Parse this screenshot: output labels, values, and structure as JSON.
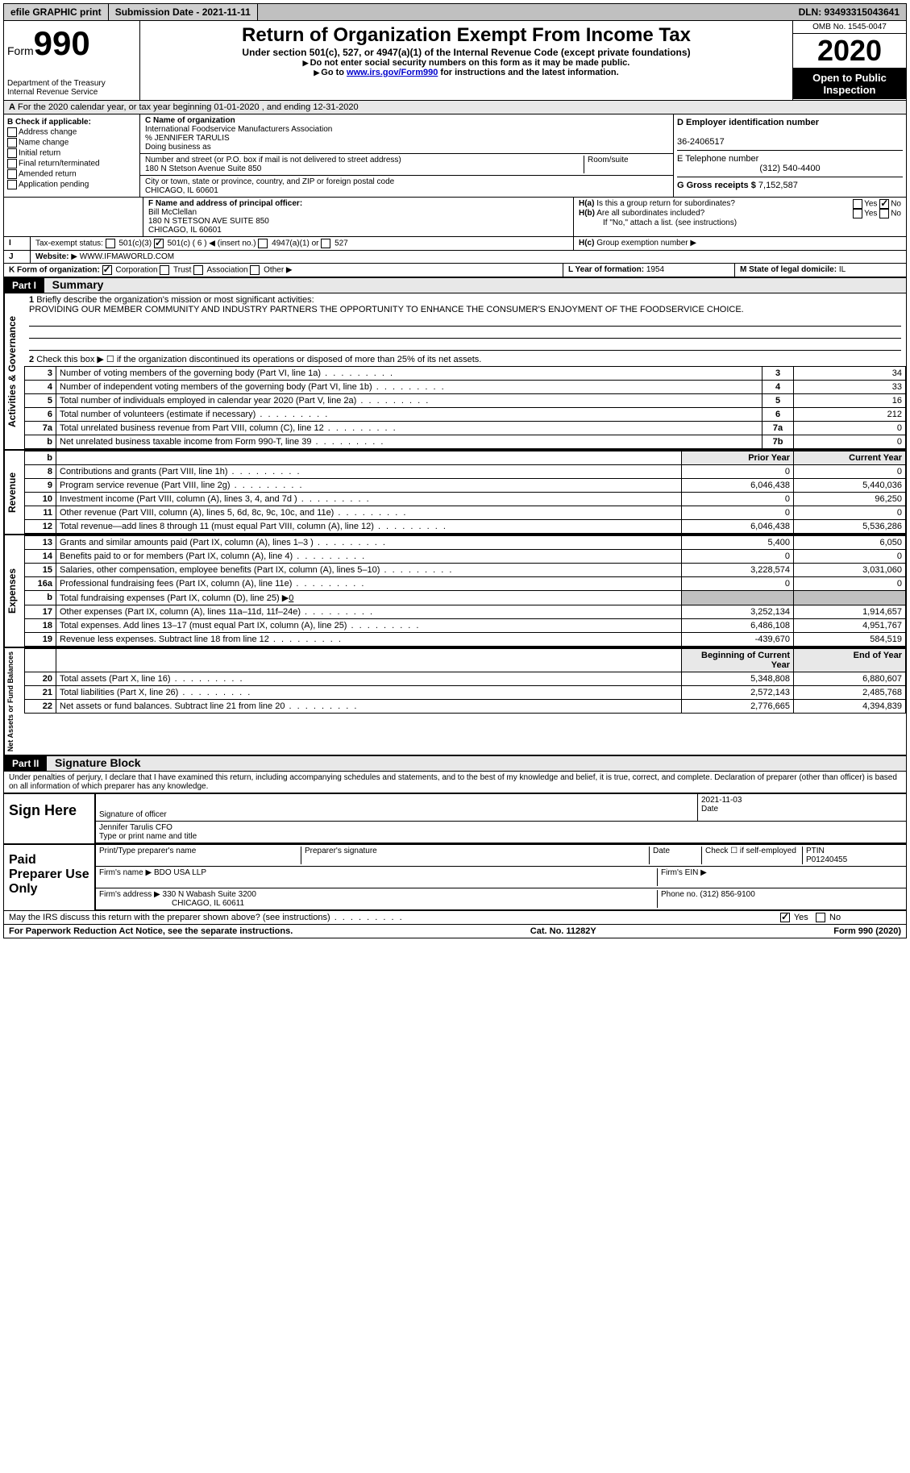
{
  "topbar": {
    "efile": "efile GRAPHIC print",
    "submission": "Submission Date - 2021-11-11",
    "dln": "DLN: 93493315043641"
  },
  "header": {
    "form_word": "Form",
    "form_num": "990",
    "dept": "Department of the Treasury",
    "irs": "Internal Revenue Service",
    "title": "Return of Organization Exempt From Income Tax",
    "subtitle": "Under section 501(c), 527, or 4947(a)(1) of the Internal Revenue Code (except private foundations)",
    "inst1": "Do not enter social security numbers on this form as it may be made public.",
    "inst2_pre": "Go to ",
    "inst2_link": "www.irs.gov/Form990",
    "inst2_post": " for instructions and the latest information.",
    "omb": "OMB No. 1545-0047",
    "year": "2020",
    "open": "Open to Public Inspection"
  },
  "section_a": "For the 2020 calendar year, or tax year beginning 01-01-2020   , and ending 12-31-2020",
  "box_b": {
    "label": "B Check if applicable:",
    "items": [
      "Address change",
      "Name change",
      "Initial return",
      "Final return/terminated",
      "Amended return",
      "Application pending"
    ]
  },
  "box_c": {
    "label_name": "C Name of organization",
    "org_name": "International Foodservice Manufacturers Association",
    "care_of": "% JENNIFER TARULIS",
    "dba_label": "Doing business as",
    "addr_label": "Number and street (or P.O. box if mail is not delivered to street address)",
    "room_label": "Room/suite",
    "addr": "180 N Stetson Avenue Suite 850",
    "city_label": "City or town, state or province, country, and ZIP or foreign postal code",
    "city": "CHICAGO, IL  60601"
  },
  "box_d": {
    "label": "D Employer identification number",
    "ein": "36-2406517"
  },
  "box_e": {
    "label": "E Telephone number",
    "phone": "(312) 540-4400"
  },
  "box_g": {
    "label": "G Gross receipts $",
    "amount": "7,152,587"
  },
  "box_f": {
    "label": "F Name and address of principal officer:",
    "name": "Bill McClellan",
    "addr1": "180 N STETSON AVE SUITE 850",
    "addr2": "CHICAGO, IL  60601"
  },
  "box_h": {
    "a_label": "Is this a group return for subordinates?",
    "b_label": "Are all subordinates included?",
    "b_note": "If \"No,\" attach a list. (see instructions)",
    "c_label": "Group exemption number",
    "yes": "Yes",
    "no": "No"
  },
  "box_i": {
    "label": "Tax-exempt status:",
    "opt1": "501(c)(3)",
    "opt2": "501(c) ( 6 )",
    "opt2_note": "(insert no.)",
    "opt3": "4947(a)(1) or",
    "opt4": "527"
  },
  "box_j": {
    "label": "Website:",
    "value": "WWW.IFMAWORLD.COM"
  },
  "box_k": {
    "label": "K Form of organization:",
    "opt1": "Corporation",
    "opt2": "Trust",
    "opt3": "Association",
    "opt4": "Other"
  },
  "box_l": {
    "label": "L Year of formation:",
    "value": "1954"
  },
  "box_m": {
    "label": "M State of legal domicile:",
    "value": "IL"
  },
  "part1": {
    "label": "Part I",
    "title": "Summary",
    "q1": "Briefly describe the organization's mission or most significant activities:",
    "mission": "PROVIDING OUR MEMBER COMMUNITY AND INDUSTRY PARTNERS THE OPPORTUNITY TO ENHANCE THE CONSUMER'S ENJOYMENT OF THE FOODSERVICE CHOICE.",
    "q2": "Check this box ▶ ☐  if the organization discontinued its operations or disposed of more than 25% of its net assets."
  },
  "gov_section_label": "Activities & Governance",
  "rev_section_label": "Revenue",
  "exp_section_label": "Expenses",
  "net_section_label": "Net Assets or Fund Balances",
  "lines": {
    "l3": {
      "n": "3",
      "t": "Number of voting members of the governing body (Part VI, line 1a)",
      "box": "3",
      "v": "34"
    },
    "l4": {
      "n": "4",
      "t": "Number of independent voting members of the governing body (Part VI, line 1b)",
      "box": "4",
      "v": "33"
    },
    "l5": {
      "n": "5",
      "t": "Total number of individuals employed in calendar year 2020 (Part V, line 2a)",
      "box": "5",
      "v": "16"
    },
    "l6": {
      "n": "6",
      "t": "Total number of volunteers (estimate if necessary)",
      "box": "6",
      "v": "212"
    },
    "l7a": {
      "n": "7a",
      "t": "Total unrelated business revenue from Part VIII, column (C), line 12",
      "box": "7a",
      "v": "0"
    },
    "l7b": {
      "n": "b",
      "t": "Net unrelated business taxable income from Form 990-T, line 39",
      "box": "7b",
      "v": "0"
    }
  },
  "col_prior": "Prior Year",
  "col_current": "Current Year",
  "rev_lines": [
    {
      "n": "8",
      "t": "Contributions and grants (Part VIII, line 1h)",
      "p": "0",
      "c": "0"
    },
    {
      "n": "9",
      "t": "Program service revenue (Part VIII, line 2g)",
      "p": "6,046,438",
      "c": "5,440,036"
    },
    {
      "n": "10",
      "t": "Investment income (Part VIII, column (A), lines 3, 4, and 7d )",
      "p": "0",
      "c": "96,250"
    },
    {
      "n": "11",
      "t": "Other revenue (Part VIII, column (A), lines 5, 6d, 8c, 9c, 10c, and 11e)",
      "p": "0",
      "c": "0"
    },
    {
      "n": "12",
      "t": "Total revenue—add lines 8 through 11 (must equal Part VIII, column (A), line 12)",
      "p": "6,046,438",
      "c": "5,536,286"
    }
  ],
  "exp_lines": [
    {
      "n": "13",
      "t": "Grants and similar amounts paid (Part IX, column (A), lines 1–3 )",
      "p": "5,400",
      "c": "6,050"
    },
    {
      "n": "14",
      "t": "Benefits paid to or for members (Part IX, column (A), line 4)",
      "p": "0",
      "c": "0"
    },
    {
      "n": "15",
      "t": "Salaries, other compensation, employee benefits (Part IX, column (A), lines 5–10)",
      "p": "3,228,574",
      "c": "3,031,060"
    },
    {
      "n": "16a",
      "t": "Professional fundraising fees (Part IX, column (A), line 11e)",
      "p": "0",
      "c": "0"
    }
  ],
  "line16b": {
    "n": "b",
    "t": "Total fundraising expenses (Part IX, column (D), line 25) ▶",
    "v": "0"
  },
  "exp_lines2": [
    {
      "n": "17",
      "t": "Other expenses (Part IX, column (A), lines 11a–11d, 11f–24e)",
      "p": "3,252,134",
      "c": "1,914,657"
    },
    {
      "n": "18",
      "t": "Total expenses. Add lines 13–17 (must equal Part IX, column (A), line 25)",
      "p": "6,486,108",
      "c": "4,951,767"
    },
    {
      "n": "19",
      "t": "Revenue less expenses. Subtract line 18 from line 12",
      "p": "-439,670",
      "c": "584,519"
    }
  ],
  "col_begin": "Beginning of Current Year",
  "col_end": "End of Year",
  "net_lines": [
    {
      "n": "20",
      "t": "Total assets (Part X, line 16)",
      "p": "5,348,808",
      "c": "6,880,607"
    },
    {
      "n": "21",
      "t": "Total liabilities (Part X, line 26)",
      "p": "2,572,143",
      "c": "2,485,768"
    },
    {
      "n": "22",
      "t": "Net assets or fund balances. Subtract line 21 from line 20",
      "p": "2,776,665",
      "c": "4,394,839"
    }
  ],
  "part2": {
    "label": "Part II",
    "title": "Signature Block",
    "penalty": "Under penalties of perjury, I declare that I have examined this return, including accompanying schedules and statements, and to the best of my knowledge and belief, it is true, correct, and complete. Declaration of preparer (other than officer) is based on all information of which preparer has any knowledge."
  },
  "sign": {
    "here": "Sign Here",
    "sig_label": "Signature of officer",
    "date_label": "Date",
    "date": "2021-11-03",
    "name": "Jennifer Tarulis CFO",
    "name_label": "Type or print name and title"
  },
  "paid": {
    "label": "Paid Preparer Use Only",
    "print_label": "Print/Type preparer's name",
    "sig_label": "Preparer's signature",
    "date_label": "Date",
    "check_label": "Check ☐ if self-employed",
    "ptin_label": "PTIN",
    "ptin": "P01240455",
    "firm_name_label": "Firm's name ▶",
    "firm_name": "BDO USA LLP",
    "firm_ein_label": "Firm's EIN ▶",
    "firm_addr_label": "Firm's address ▶",
    "firm_addr": "330 N Wabash Suite 3200",
    "firm_city": "CHICAGO, IL  60611",
    "phone_label": "Phone no.",
    "phone": "(312) 856-9100"
  },
  "discuss": {
    "q": "May the IRS discuss this return with the preparer shown above? (see instructions)",
    "yes": "Yes",
    "no": "No"
  },
  "footer": {
    "left": "For Paperwork Reduction Act Notice, see the separate instructions.",
    "center": "Cat. No. 11282Y",
    "right": "Form 990 (2020)"
  }
}
